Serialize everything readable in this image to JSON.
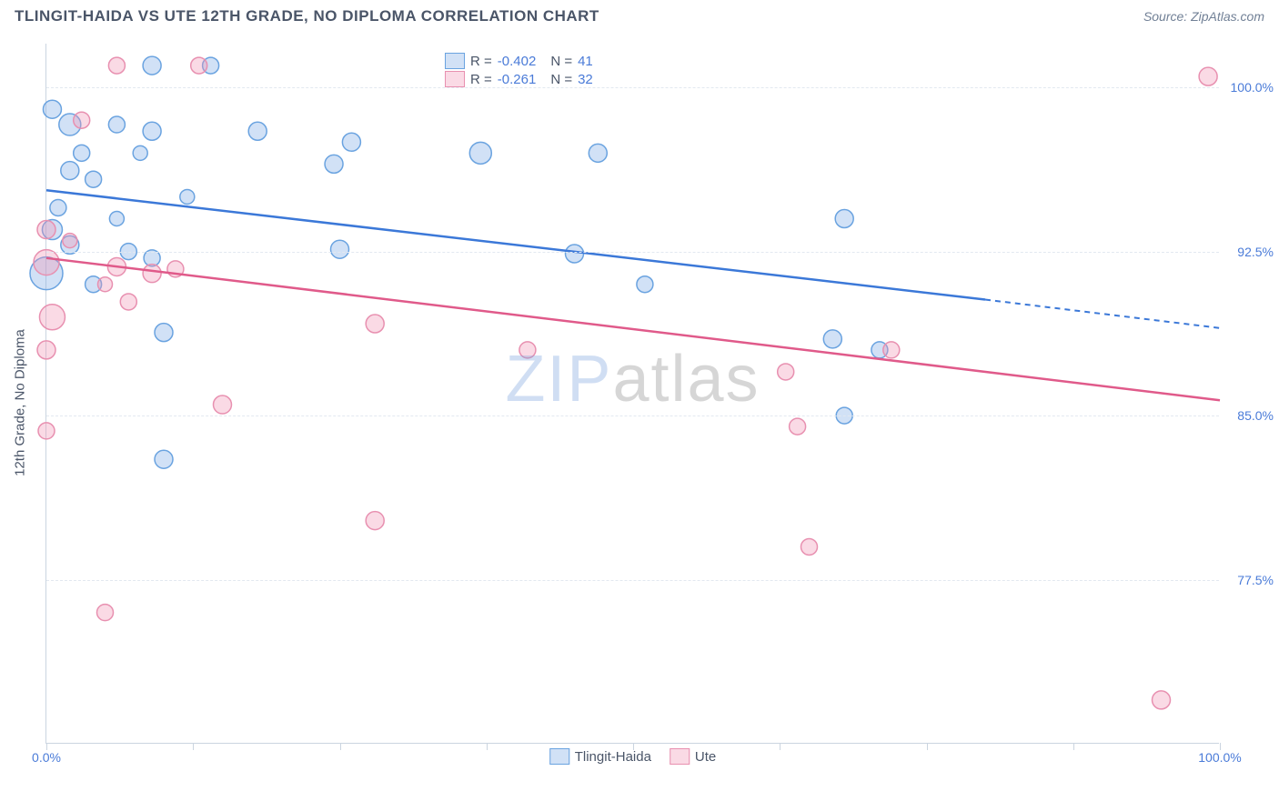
{
  "header": {
    "title": "TLINGIT-HAIDA VS UTE 12TH GRADE, NO DIPLOMA CORRELATION CHART",
    "source": "Source: ZipAtlas.com"
  },
  "chart": {
    "type": "scatter",
    "ylabel": "12th Grade, No Diploma",
    "xlim": [
      0,
      100
    ],
    "ylim": [
      70,
      102
    ],
    "xtick_positions": [
      0,
      12.5,
      25,
      37.5,
      50,
      62.5,
      75,
      87.5,
      100
    ],
    "xtick_labels_shown": {
      "0": "0.0%",
      "100": "100.0%"
    },
    "ytick_positions": [
      77.5,
      85.0,
      92.5,
      100.0
    ],
    "ytick_labels": [
      "77.5%",
      "85.0%",
      "92.5%",
      "100.0%"
    ],
    "grid_color": "#e2e8f0",
    "border_color": "#cbd5e0",
    "label_fontsize": 15,
    "tick_fontsize": 14,
    "tick_color": "#4a7bd8",
    "background_color": "#ffffff",
    "series": [
      {
        "name": "Tlingit-Haida",
        "color_fill": "rgba(122,170,230,0.35)",
        "color_stroke": "#6aa3e0",
        "line_color": "#3b78d8",
        "r_value": "-0.402",
        "n_value": "41",
        "trend": {
          "x1": 0,
          "y1": 95.3,
          "x2": 80,
          "y2": 90.3,
          "dash_x2": 100,
          "dash_y2": 89.0
        },
        "points": [
          {
            "x": 9,
            "y": 101,
            "r": 10
          },
          {
            "x": 14,
            "y": 101,
            "r": 9
          },
          {
            "x": 0.5,
            "y": 99,
            "r": 10
          },
          {
            "x": 2,
            "y": 98.3,
            "r": 12
          },
          {
            "x": 6,
            "y": 98.3,
            "r": 9
          },
          {
            "x": 9,
            "y": 98,
            "r": 10
          },
          {
            "x": 18,
            "y": 98,
            "r": 10
          },
          {
            "x": 3,
            "y": 97,
            "r": 9
          },
          {
            "x": 8,
            "y": 97,
            "r": 8
          },
          {
            "x": 26,
            "y": 97.5,
            "r": 10
          },
          {
            "x": 24.5,
            "y": 96.5,
            "r": 10
          },
          {
            "x": 37,
            "y": 97,
            "r": 12
          },
          {
            "x": 47,
            "y": 97,
            "r": 10
          },
          {
            "x": 2,
            "y": 96.2,
            "r": 10
          },
          {
            "x": 4,
            "y": 95.8,
            "r": 9
          },
          {
            "x": 1,
            "y": 94.5,
            "r": 9
          },
          {
            "x": 6,
            "y": 94,
            "r": 8
          },
          {
            "x": 12,
            "y": 95,
            "r": 8
          },
          {
            "x": 0.5,
            "y": 93.5,
            "r": 11
          },
          {
            "x": 2,
            "y": 92.8,
            "r": 10
          },
          {
            "x": 7,
            "y": 92.5,
            "r": 9
          },
          {
            "x": 9,
            "y": 92.2,
            "r": 9
          },
          {
            "x": 25,
            "y": 92.6,
            "r": 10
          },
          {
            "x": 45,
            "y": 92.4,
            "r": 10
          },
          {
            "x": 0,
            "y": 91.5,
            "r": 18
          },
          {
            "x": 4,
            "y": 91,
            "r": 9
          },
          {
            "x": 51,
            "y": 91,
            "r": 9
          },
          {
            "x": 68,
            "y": 94,
            "r": 10
          },
          {
            "x": 10,
            "y": 88.8,
            "r": 10
          },
          {
            "x": 67,
            "y": 88.5,
            "r": 10
          },
          {
            "x": 71,
            "y": 88,
            "r": 9
          },
          {
            "x": 68,
            "y": 85,
            "r": 9
          },
          {
            "x": 10,
            "y": 83,
            "r": 10
          }
        ]
      },
      {
        "name": "Ute",
        "color_fill": "rgba(240,150,180,0.35)",
        "color_stroke": "#e890b0",
        "line_color": "#e05a8a",
        "r_value": "-0.261",
        "n_value": "32",
        "trend": {
          "x1": 0,
          "y1": 92.2,
          "x2": 100,
          "y2": 85.7,
          "dash_x2": 100,
          "dash_y2": 85.7
        },
        "points": [
          {
            "x": 6,
            "y": 101,
            "r": 9
          },
          {
            "x": 13,
            "y": 101,
            "r": 9
          },
          {
            "x": 99,
            "y": 100.5,
            "r": 10
          },
          {
            "x": 3,
            "y": 98.5,
            "r": 9
          },
          {
            "x": 0,
            "y": 93.5,
            "r": 10
          },
          {
            "x": 2,
            "y": 93,
            "r": 8
          },
          {
            "x": 0,
            "y": 92,
            "r": 14
          },
          {
            "x": 6,
            "y": 91.8,
            "r": 10
          },
          {
            "x": 9,
            "y": 91.5,
            "r": 10
          },
          {
            "x": 11,
            "y": 91.7,
            "r": 9
          },
          {
            "x": 5,
            "y": 91,
            "r": 8
          },
          {
            "x": 7,
            "y": 90.2,
            "r": 9
          },
          {
            "x": 0.5,
            "y": 89.5,
            "r": 14
          },
          {
            "x": 28,
            "y": 89.2,
            "r": 10
          },
          {
            "x": 41,
            "y": 88,
            "r": 9
          },
          {
            "x": 72,
            "y": 88,
            "r": 9
          },
          {
            "x": 63,
            "y": 87,
            "r": 9
          },
          {
            "x": 0,
            "y": 88,
            "r": 10
          },
          {
            "x": 15,
            "y": 85.5,
            "r": 10
          },
          {
            "x": 0,
            "y": 84.3,
            "r": 9
          },
          {
            "x": 64,
            "y": 84.5,
            "r": 9
          },
          {
            "x": 28,
            "y": 80.2,
            "r": 10
          },
          {
            "x": 65,
            "y": 79,
            "r": 9
          },
          {
            "x": 5,
            "y": 76,
            "r": 9
          },
          {
            "x": 95,
            "y": 72,
            "r": 10
          }
        ]
      }
    ],
    "legend_bottom": [
      {
        "label": "Tlingit-Haida",
        "fill": "rgba(122,170,230,0.35)",
        "stroke": "#6aa3e0"
      },
      {
        "label": "Ute",
        "fill": "rgba(240,150,180,0.35)",
        "stroke": "#e890b0"
      }
    ],
    "watermark": {
      "zip": "ZIP",
      "atlas": "atlas"
    }
  }
}
